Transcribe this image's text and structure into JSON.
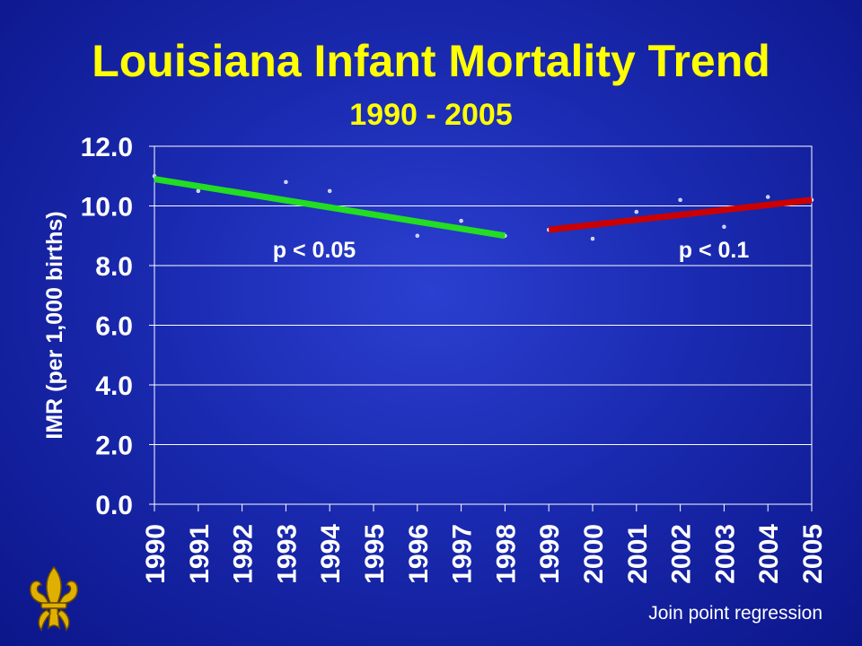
{
  "slide": {
    "title": "Louisiana Infant Mortality Trend",
    "subtitle": "1990 - 2005",
    "footnote": "Join point regression",
    "logo_icon": "fleur-de-lis-icon"
  },
  "colors": {
    "background": "#1a2ab0",
    "title": "#ffff00",
    "segment1": "#22dd22",
    "segment2": "#cc0000",
    "text": "#ffffff"
  },
  "chart_data": {
    "type": "scatter",
    "title": "Louisiana Infant Mortality Trend",
    "subtitle": "1990 - 2005",
    "ylabel": "IMR (per 1,000 births)",
    "xlabel": "",
    "ylim": [
      0,
      12
    ],
    "yticks": [
      "0.0",
      "2.0",
      "4.0",
      "6.0",
      "8.0",
      "10.0",
      "12.0"
    ],
    "categories": [
      "1990",
      "1991",
      "1992",
      "1993",
      "1994",
      "1995",
      "1996",
      "1997",
      "1998",
      "1999",
      "2000",
      "2001",
      "2002",
      "2003",
      "2004",
      "2005"
    ],
    "grid": true,
    "series": [
      {
        "kind": "points",
        "x": [
          "1990",
          "1991",
          "1993",
          "1994",
          "1996",
          "1997",
          "1998",
          "1999",
          "2000",
          "2001",
          "2002",
          "2003",
          "2004",
          "2005"
        ],
        "values": [
          11.0,
          10.5,
          10.8,
          10.5,
          9.0,
          9.5,
          9.0,
          9.2,
          8.9,
          9.8,
          10.2,
          9.3,
          10.3,
          10.2
        ]
      },
      {
        "kind": "trend",
        "color": "#22dd22",
        "x": [
          "1990",
          "1998"
        ],
        "values": [
          10.9,
          9.0
        ],
        "annotation": "p < 0.05"
      },
      {
        "kind": "trend",
        "color": "#cc0000",
        "x": [
          "1999",
          "2005"
        ],
        "values": [
          9.2,
          10.2
        ],
        "annotation": "p < 0.1"
      }
    ]
  }
}
